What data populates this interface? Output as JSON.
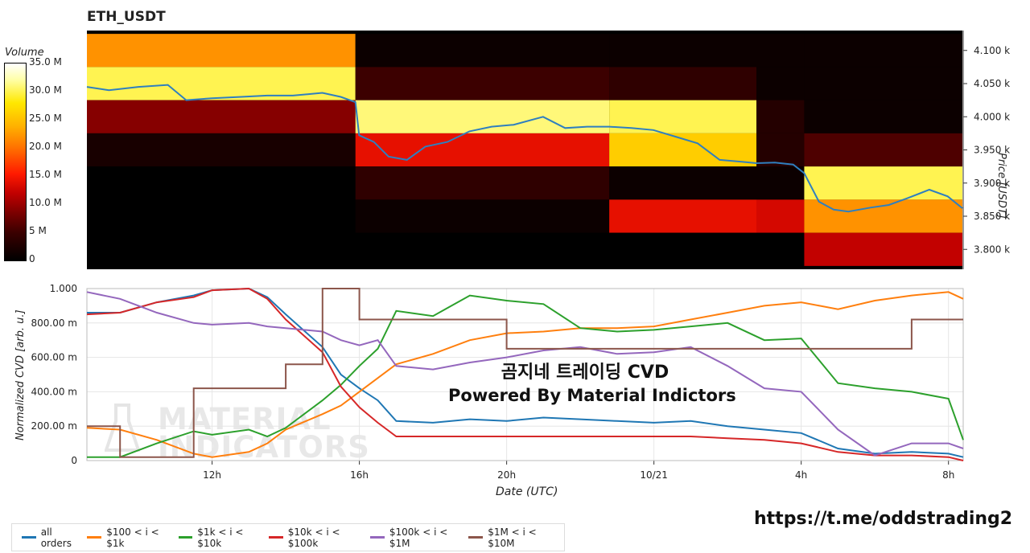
{
  "chart_data": [
    {
      "type": "heatmap",
      "title": "ETH_USDT",
      "xlim": [
        8.6,
        32.4
      ],
      "ylim": [
        3770,
        4130
      ],
      "y_axis": {
        "label": "Price [USDT]",
        "ticks": [
          {
            "value": 4100,
            "label": "4.100 k"
          },
          {
            "value": 4050,
            "label": "4.050 k"
          },
          {
            "value": 4000,
            "label": "4.000 k"
          },
          {
            "value": 3950,
            "label": "3.950 k"
          },
          {
            "value": 3900,
            "label": "3.900 k"
          },
          {
            "value": 3850,
            "label": "3.850 k"
          },
          {
            "value": 3800,
            "label": "3.800 k"
          }
        ]
      },
      "colorbar": {
        "title": "Volume",
        "max": 35,
        "ticks": [
          {
            "value": 35,
            "label": "35.0 M"
          },
          {
            "value": 30,
            "label": "30.0 M"
          },
          {
            "value": 25,
            "label": "25.0 M"
          },
          {
            "value": 20,
            "label": "20.0 M"
          },
          {
            "value": 15,
            "label": "15.0 M"
          },
          {
            "value": 10,
            "label": "10.0 M"
          },
          {
            "value": 5,
            "label": "5 M"
          },
          {
            "value": 0,
            "label": "0"
          }
        ]
      },
      "bins": [
        {
          "x0": 8.6,
          "x1": 15.9,
          "levels": [
            [
              4100,
              22
            ],
            [
              4050,
              30
            ],
            [
              4000,
              9
            ],
            [
              3950,
              2
            ],
            [
              3900,
              0
            ],
            [
              3850,
              0
            ],
            [
              3800,
              0
            ]
          ]
        },
        {
          "x0": 15.9,
          "x1": 22.8,
          "levels": [
            [
              4100,
              1
            ],
            [
              4050,
              5
            ],
            [
              4000,
              31
            ],
            [
              3950,
              14
            ],
            [
              3900,
              4
            ],
            [
              3850,
              1
            ],
            [
              3800,
              0
            ]
          ]
        },
        {
          "x0": 22.8,
          "x1": 26.8,
          "levels": [
            [
              4100,
              1
            ],
            [
              4050,
              4
            ],
            [
              4000,
              30
            ],
            [
              3950,
              26
            ],
            [
              3900,
              1
            ],
            [
              3850,
              14
            ],
            [
              3800,
              0
            ]
          ]
        },
        {
          "x0": 26.8,
          "x1": 28.1,
          "levels": [
            [
              4100,
              1
            ],
            [
              4050,
              1
            ],
            [
              4000,
              3
            ],
            [
              3950,
              3
            ],
            [
              3900,
              1
            ],
            [
              3850,
              13
            ],
            [
              3800,
              0
            ]
          ]
        },
        {
          "x0": 28.1,
          "x1": 32.4,
          "levels": [
            [
              4100,
              1
            ],
            [
              4050,
              1
            ],
            [
              4000,
              1
            ],
            [
              3950,
              6
            ],
            [
              3900,
              30
            ],
            [
              3850,
              22
            ],
            [
              3800,
              12
            ]
          ]
        }
      ],
      "series": [
        {
          "name": "price",
          "color": "#2f7fbf",
          "x": [
            8.6,
            9.2,
            10.0,
            10.8,
            11.3,
            12.0,
            12.8,
            13.5,
            14.2,
            15.0,
            15.5,
            15.9,
            16.0,
            16.4,
            16.8,
            17.3,
            17.8,
            18.4,
            19.0,
            19.6,
            20.2,
            21.0,
            21.6,
            22.2,
            22.8,
            23.4,
            24.0,
            24.6,
            25.2,
            25.8,
            26.4,
            26.8,
            27.3,
            27.8,
            28.1,
            28.5,
            28.9,
            29.3,
            29.9,
            30.4,
            30.9,
            31.5,
            32.0,
            32.4
          ],
          "y": [
            4045,
            4040,
            4045,
            4048,
            4025,
            4028,
            4030,
            4032,
            4032,
            4036,
            4030,
            4022,
            3972,
            3962,
            3940,
            3935,
            3955,
            3962,
            3978,
            3985,
            3988,
            4000,
            3983,
            3985,
            3985,
            3983,
            3980,
            3970,
            3960,
            3935,
            3932,
            3930,
            3931,
            3928,
            3915,
            3872,
            3860,
            3857,
            3863,
            3867,
            3877,
            3890,
            3880,
            3862
          ]
        }
      ]
    },
    {
      "type": "line",
      "xlabel": "Date (UTC)",
      "ylabel": "Normalized CVD [arb. u.]",
      "xlim": [
        8.6,
        32.4
      ],
      "ylim": [
        0,
        1
      ],
      "x_ticks": [
        {
          "value": 12,
          "label": "12h"
        },
        {
          "value": 16,
          "label": "16h"
        },
        {
          "value": 20,
          "label": "20h"
        },
        {
          "value": 24,
          "label": "10/21"
        },
        {
          "value": 28,
          "label": "4h"
        },
        {
          "value": 32,
          "label": "8h"
        }
      ],
      "y_ticks": [
        {
          "value": 0,
          "label": "0"
        },
        {
          "value": 0.2,
          "label": "200.00 m"
        },
        {
          "value": 0.4,
          "label": "400.00 m"
        },
        {
          "value": 0.6,
          "label": "600.00 m"
        },
        {
          "value": 0.8,
          "label": "800.00 m"
        },
        {
          "value": 1,
          "label": "1.000"
        }
      ],
      "x": [
        8.6,
        9.5,
        10.5,
        11.5,
        12.0,
        13.0,
        13.5,
        14.0,
        15.0,
        15.5,
        16.0,
        16.5,
        17.0,
        18.0,
        19.0,
        20.0,
        21.0,
        22.0,
        23.0,
        24.0,
        25.0,
        26.0,
        27.0,
        28.0,
        29.0,
        30.0,
        31.0,
        32.0,
        32.4
      ],
      "series": [
        {
          "name": "all orders",
          "color": "#1f77b4",
          "values": [
            0.86,
            0.86,
            0.92,
            0.96,
            0.99,
            1.0,
            0.95,
            0.85,
            0.66,
            0.5,
            0.42,
            0.35,
            0.23,
            0.22,
            0.24,
            0.23,
            0.25,
            0.24,
            0.23,
            0.22,
            0.23,
            0.2,
            0.18,
            0.16,
            0.07,
            0.04,
            0.05,
            0.04,
            0.02
          ]
        },
        {
          "name": "$100 < i < $1k",
          "color": "#ff7f0e",
          "values": [
            0.19,
            0.18,
            0.12,
            0.04,
            0.02,
            0.05,
            0.1,
            0.18,
            0.27,
            0.32,
            0.4,
            0.48,
            0.56,
            0.62,
            0.7,
            0.74,
            0.75,
            0.77,
            0.77,
            0.78,
            0.82,
            0.86,
            0.9,
            0.92,
            0.88,
            0.93,
            0.96,
            0.98,
            0.94
          ]
        },
        {
          "name": "$1k < i < $10k",
          "color": "#2ca02c",
          "values": [
            0.02,
            0.02,
            0.1,
            0.17,
            0.15,
            0.18,
            0.14,
            0.19,
            0.35,
            0.44,
            0.55,
            0.65,
            0.87,
            0.84,
            0.96,
            0.93,
            0.91,
            0.77,
            0.75,
            0.76,
            0.78,
            0.8,
            0.7,
            0.71,
            0.45,
            0.42,
            0.4,
            0.36,
            0.12
          ]
        },
        {
          "name": "$10k < i < $100k",
          "color": "#d62728",
          "values": [
            0.85,
            0.86,
            0.92,
            0.95,
            0.99,
            1.0,
            0.94,
            0.82,
            0.63,
            0.43,
            0.31,
            0.22,
            0.14,
            0.14,
            0.14,
            0.14,
            0.14,
            0.14,
            0.14,
            0.14,
            0.14,
            0.13,
            0.12,
            0.1,
            0.05,
            0.03,
            0.03,
            0.02,
            0.0
          ]
        },
        {
          "name": "$100k < i < $1M",
          "color": "#9467bd",
          "values": [
            0.98,
            0.94,
            0.86,
            0.8,
            0.79,
            0.8,
            0.78,
            0.77,
            0.75,
            0.7,
            0.67,
            0.7,
            0.55,
            0.53,
            0.57,
            0.6,
            0.64,
            0.66,
            0.62,
            0.63,
            0.66,
            0.55,
            0.42,
            0.4,
            0.18,
            0.03,
            0.1,
            0.1,
            0.07
          ]
        },
        {
          "name": "$1M < i < $10M",
          "color": "#8c564b",
          "values": [
            0.2,
            0.02,
            0.02,
            0.42,
            0.42,
            0.42,
            0.42,
            0.56,
            1.0,
            1.0,
            0.82,
            0.82,
            0.82,
            0.82,
            0.82,
            0.65,
            0.65,
            0.65,
            0.65,
            0.65,
            0.65,
            0.65,
            0.65,
            0.65,
            0.65,
            0.65,
            0.82,
            0.82,
            0.82
          ]
        }
      ]
    }
  ],
  "watermark": {
    "line1": "MATERIAL",
    "line2": "INDICATORS"
  },
  "overlay": {
    "line1": "곰지네 트레이딩 CVD",
    "line2": "Powered By Material Indictors"
  },
  "telegram_link": "https://t.me/oddstrading2"
}
